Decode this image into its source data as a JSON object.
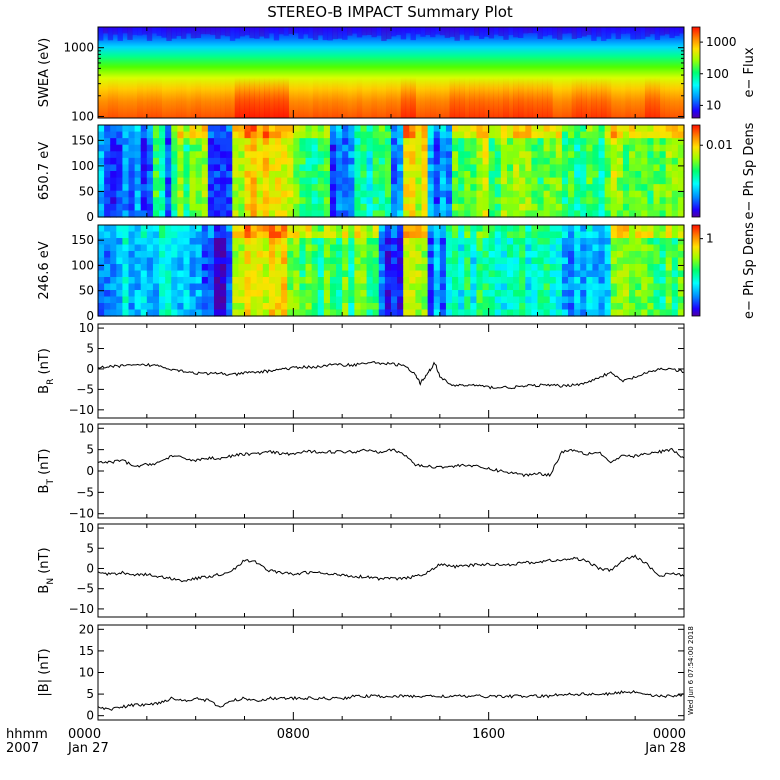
{
  "title": "STEREO-B IMPACT Summary Plot",
  "time_axis": {
    "row1_label": "hhmm",
    "row2_label": "2007",
    "ticks": [
      {
        "x_hours": 0,
        "time": "0000",
        "date": "Jan 27"
      },
      {
        "x_hours": 8,
        "time": "0800",
        "date": ""
      },
      {
        "x_hours": 16,
        "time": "1600",
        "date": ""
      },
      {
        "x_hours": 24,
        "time": "0000",
        "date": "Jan 28"
      }
    ]
  },
  "stamp": "Wed Jun  6 07:54:00 2018",
  "chart_data": [
    {
      "type": "heatmap",
      "ylabel": "SWEA (eV)",
      "ylog": true,
      "ylim": [
        95,
        2000
      ],
      "yticks": [
        100,
        1000
      ],
      "ytick_labels": [
        "100",
        "1000"
      ],
      "colorbar": {
        "label": "e− Flux",
        "log": true,
        "range": [
          4,
          3000
        ],
        "ticks": [
          10,
          100,
          1000
        ],
        "tick_labels": [
          "10",
          "100",
          "1000"
        ]
      }
    },
    {
      "type": "heatmap",
      "ylabel": "650.7 eV",
      "ylim": [
        0,
        180
      ],
      "yticks": [
        0,
        50,
        100,
        150
      ],
      "ytick_labels": [
        "0",
        "50",
        "100",
        "150"
      ],
      "colorbar": {
        "label": "e− Ph Sp Dens",
        "ticks_frac": [
          0.78
        ],
        "tick_labels": [
          "0.01"
        ]
      }
    },
    {
      "type": "heatmap",
      "ylabel": "246.6 eV",
      "ylim": [
        0,
        180
      ],
      "yticks": [
        0,
        50,
        100,
        150
      ],
      "ytick_labels": [
        "0",
        "50",
        "100",
        "150"
      ],
      "colorbar": {
        "label": "e− Ph Sp Dens",
        "ticks_frac": [
          0.85
        ],
        "tick_labels": [
          "1"
        ]
      }
    },
    {
      "type": "line",
      "ylabel": "B",
      "ylabel_sub": "R",
      "ylabel_unit": "(nT)",
      "ylim": [
        -12,
        11
      ],
      "yticks": [
        -10,
        -5,
        0,
        5,
        10
      ],
      "ytick_labels": [
        "−10",
        "−5",
        "0",
        "5",
        "10"
      ],
      "x": [
        0,
        0.5,
        1,
        1.5,
        2,
        2.5,
        3,
        3.5,
        4,
        4.5,
        5,
        5.5,
        6,
        6.5,
        7,
        7.5,
        8,
        8.5,
        9,
        9.5,
        10,
        10.5,
        11,
        11.5,
        12,
        12.5,
        13,
        13.2,
        13.5,
        13.8,
        14,
        14.5,
        15,
        15.5,
        16,
        16.5,
        17,
        17.5,
        18,
        18.5,
        19,
        19.5,
        20,
        20.5,
        21,
        21.5,
        22,
        22.5,
        23,
        23.5,
        24
      ],
      "y": [
        0.5,
        0.5,
        0.8,
        0.8,
        1,
        0.8,
        0,
        -0.5,
        -1,
        -1.2,
        -1,
        -1.5,
        -1,
        -0.8,
        -0.5,
        0,
        0.2,
        0.5,
        0.5,
        1,
        1,
        1,
        1.5,
        1.5,
        1.2,
        1,
        -1.5,
        -3.5,
        -1,
        1.5,
        -2,
        -4,
        -4,
        -4,
        -4.5,
        -4.5,
        -4.5,
        -4.2,
        -4,
        -4,
        -4.2,
        -3.8,
        -3.5,
        -2,
        -1,
        -3,
        -2,
        -1,
        0,
        0,
        -0.8
      ]
    },
    {
      "type": "line",
      "ylabel": "B",
      "ylabel_sub": "T",
      "ylabel_unit": "(nT)",
      "ylim": [
        -11,
        11
      ],
      "yticks": [
        -10,
        -5,
        0,
        5,
        10
      ],
      "ytick_labels": [
        "−10",
        "−5",
        "0",
        "5",
        "10"
      ],
      "x": [
        0,
        0.5,
        1,
        1.5,
        2,
        2.5,
        3,
        3.5,
        4,
        4.5,
        5,
        5.5,
        6,
        6.5,
        7,
        7.5,
        8,
        8.5,
        9,
        9.5,
        10,
        10.5,
        11,
        11.5,
        12,
        12.5,
        13,
        13.5,
        14,
        14.5,
        15,
        15.5,
        16,
        16.5,
        17,
        17.5,
        18,
        18.5,
        19,
        19.5,
        20,
        20.5,
        21,
        21.5,
        22,
        22.5,
        23,
        23.5,
        24
      ],
      "y": [
        2,
        2,
        2.5,
        1,
        1.5,
        2,
        3.5,
        3,
        2.5,
        3,
        3,
        3.5,
        4,
        4,
        4.5,
        4,
        4,
        4.5,
        4.5,
        4.5,
        4.5,
        4.5,
        5,
        4.5,
        5,
        4,
        1.5,
        1,
        1,
        1,
        1.5,
        1,
        0.5,
        0,
        -0.5,
        -1,
        -0.5,
        -1,
        4.5,
        5,
        4,
        4.5,
        2,
        3.5,
        3.5,
        4,
        4.5,
        5,
        3
      ]
    },
    {
      "type": "line",
      "ylabel": "B",
      "ylabel_sub": "N",
      "ylabel_unit": "(nT)",
      "ylim": [
        -12,
        11
      ],
      "yticks": [
        -10,
        -5,
        0,
        5,
        10
      ],
      "ytick_labels": [
        "−10",
        "−5",
        "0",
        "5",
        "10"
      ],
      "x": [
        0,
        0.5,
        1,
        1.5,
        2,
        2.5,
        3,
        3.5,
        4,
        4.5,
        5,
        5.5,
        6,
        6.5,
        7,
        7.5,
        8,
        8.5,
        9,
        9.5,
        10,
        10.5,
        11,
        11.5,
        12,
        12.5,
        13,
        13.5,
        14,
        14.5,
        15,
        15.5,
        16,
        16.5,
        17,
        17.5,
        18,
        18.5,
        19,
        19.5,
        20,
        20.5,
        21,
        21.5,
        22,
        22.5,
        23,
        23.5,
        24
      ],
      "y": [
        -1,
        -1.5,
        -1,
        -1.5,
        -1.5,
        -2,
        -2.5,
        -3,
        -2.5,
        -2,
        -1.5,
        -0.5,
        2,
        1.5,
        -0.5,
        -1,
        -1.5,
        -1,
        -1,
        -1.5,
        -1.5,
        -2,
        -2,
        -2.5,
        -2.5,
        -2.5,
        -2,
        -1,
        1,
        0.5,
        0.5,
        1,
        1,
        1,
        1,
        1.5,
        1.5,
        2,
        2,
        2.5,
        2,
        0,
        -0.5,
        2,
        3,
        1,
        -2,
        -1,
        -2
      ]
    },
    {
      "type": "line",
      "ylabel": "|B|",
      "ylabel_unit": "(nT)",
      "ylim": [
        -1,
        21
      ],
      "yticks": [
        0,
        5,
        10,
        15,
        20
      ],
      "ytick_labels": [
        "0",
        "5",
        "10",
        "15",
        "20"
      ],
      "x": [
        0,
        0.5,
        1,
        1.5,
        2,
        2.5,
        3,
        3.5,
        4,
        4.5,
        5,
        5.5,
        6,
        6.5,
        7,
        7.5,
        8,
        8.5,
        9,
        9.5,
        10,
        10.5,
        11,
        11.5,
        12,
        12.5,
        13,
        13.5,
        14,
        14.5,
        15,
        15.5,
        16,
        16.5,
        17,
        17.5,
        18,
        18.5,
        19,
        19.5,
        20,
        20.5,
        21,
        21.5,
        22,
        22.5,
        23,
        23.5,
        24
      ],
      "y": [
        2,
        1.5,
        2,
        2.5,
        2.5,
        3,
        4,
        3.5,
        4,
        3.5,
        2,
        3.5,
        4,
        3.5,
        4,
        4,
        4,
        4,
        4,
        4,
        4,
        4.5,
        4.5,
        4.5,
        4.5,
        4.5,
        4.5,
        4.5,
        4.5,
        4.5,
        4.5,
        4.5,
        4.5,
        4.5,
        4.5,
        4.5,
        4.5,
        4.5,
        5,
        5,
        5,
        5,
        5,
        5.5,
        5.5,
        5,
        4.5,
        4.5,
        5
      ]
    }
  ]
}
